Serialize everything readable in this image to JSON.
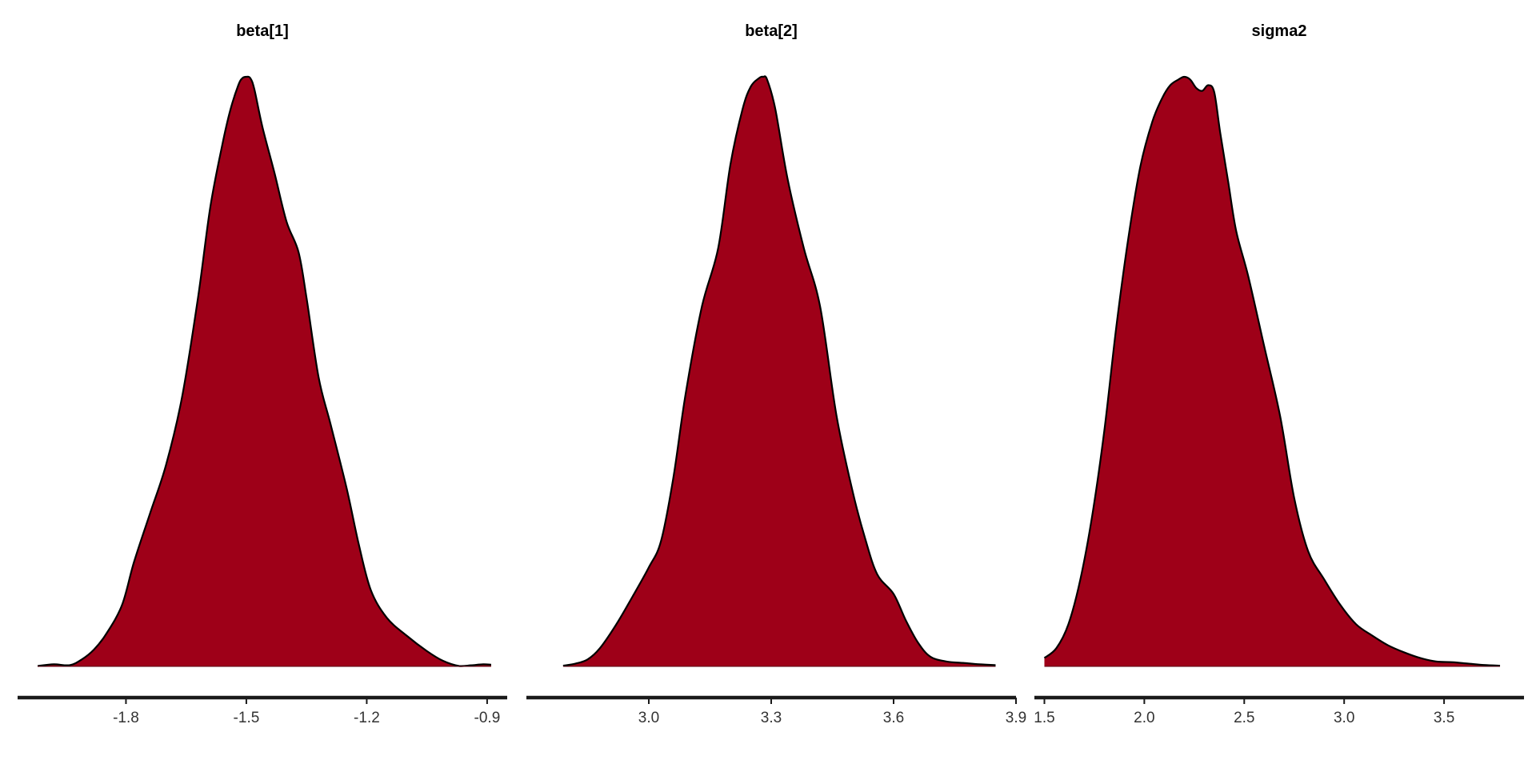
{
  "chart_data": [
    {
      "type": "area",
      "title": "beta[1]",
      "xlabel": "",
      "ylabel": "",
      "xlim": [
        -2.07,
        -0.85
      ],
      "xticks": [
        -1.8,
        -1.5,
        -1.2,
        -0.9
      ],
      "xtick_labels": [
        "-1.8",
        "-1.5",
        "-1.2",
        "-0.9"
      ],
      "grid": false,
      "fill_color": "#9e0018",
      "line_color": "#000000",
      "x": [
        -2.02,
        -1.98,
        -1.94,
        -1.91,
        -1.88,
        -1.85,
        -1.81,
        -1.78,
        -1.74,
        -1.7,
        -1.66,
        -1.62,
        -1.59,
        -1.56,
        -1.54,
        -1.52,
        -1.51,
        -1.5,
        -1.49,
        -1.48,
        -1.46,
        -1.43,
        -1.4,
        -1.37,
        -1.35,
        -1.32,
        -1.29,
        -1.25,
        -1.22,
        -1.19,
        -1.15,
        -1.1,
        -1.05,
        -1.01,
        -0.97,
        -0.94,
        -0.91,
        -0.89
      ],
      "y": [
        0.003,
        0.015,
        0.009,
        0.05,
        0.12,
        0.23,
        0.44,
        0.75,
        1.1,
        1.45,
        1.94,
        2.66,
        3.3,
        3.75,
        4.0,
        4.18,
        4.23,
        4.24,
        4.23,
        4.15,
        3.88,
        3.55,
        3.2,
        2.98,
        2.65,
        2.08,
        1.74,
        1.28,
        0.88,
        0.55,
        0.35,
        0.22,
        0.11,
        0.04,
        0.003,
        0.008,
        0.015,
        0.012
      ]
    },
    {
      "type": "area",
      "title": "beta[2]",
      "xlabel": "",
      "ylabel": "",
      "xlim": [
        2.7,
        3.9
      ],
      "xticks": [
        3.0,
        3.3,
        3.6,
        3.9
      ],
      "xtick_labels": [
        "3.0",
        "3.3",
        "3.6",
        "3.9"
      ],
      "grid": false,
      "fill_color": "#9e0018",
      "line_color": "#000000",
      "x": [
        2.79,
        2.82,
        2.85,
        2.88,
        2.92,
        2.96,
        3.0,
        3.03,
        3.06,
        3.09,
        3.13,
        3.17,
        3.2,
        3.23,
        3.25,
        3.27,
        3.28,
        3.29,
        3.31,
        3.34,
        3.38,
        3.42,
        3.46,
        3.5,
        3.53,
        3.56,
        3.6,
        3.63,
        3.66,
        3.69,
        3.73,
        3.77,
        3.81,
        3.85
      ],
      "y": [
        0.005,
        0.02,
        0.05,
        0.13,
        0.3,
        0.5,
        0.71,
        0.9,
        1.35,
        1.95,
        2.58,
        3.0,
        3.6,
        4.0,
        4.16,
        4.22,
        4.23,
        4.21,
        4.0,
        3.5,
        3.0,
        2.58,
        1.8,
        1.25,
        0.92,
        0.66,
        0.52,
        0.33,
        0.17,
        0.07,
        0.035,
        0.025,
        0.015,
        0.009
      ]
    },
    {
      "type": "area",
      "title": "sigma2",
      "xlabel": "",
      "ylabel": "",
      "xlim": [
        1.45,
        3.9
      ],
      "xticks": [
        1.5,
        2.0,
        2.5,
        3.0,
        3.5
      ],
      "xtick_labels": [
        "1.5",
        "2.0",
        "2.5",
        "3.0",
        "3.5"
      ],
      "grid": false,
      "fill_color": "#9e0018",
      "line_color": "#000000",
      "x": [
        1.5,
        1.56,
        1.62,
        1.68,
        1.74,
        1.8,
        1.86,
        1.92,
        1.98,
        2.04,
        2.09,
        2.13,
        2.17,
        2.2,
        2.23,
        2.26,
        2.29,
        2.32,
        2.35,
        2.38,
        2.42,
        2.46,
        2.52,
        2.6,
        2.68,
        2.75,
        2.82,
        2.9,
        2.98,
        3.06,
        3.14,
        3.22,
        3.3,
        3.38,
        3.46,
        3.54,
        3.62,
        3.7,
        3.78
      ],
      "y": [
        0.06,
        0.13,
        0.3,
        0.62,
        1.08,
        1.68,
        2.42,
        3.05,
        3.56,
        3.88,
        4.05,
        4.14,
        4.18,
        4.2,
        4.18,
        4.12,
        4.1,
        4.14,
        4.09,
        3.8,
        3.45,
        3.1,
        2.78,
        2.28,
        1.78,
        1.2,
        0.82,
        0.62,
        0.44,
        0.3,
        0.22,
        0.15,
        0.1,
        0.06,
        0.035,
        0.03,
        0.02,
        0.01,
        0.005
      ]
    }
  ]
}
